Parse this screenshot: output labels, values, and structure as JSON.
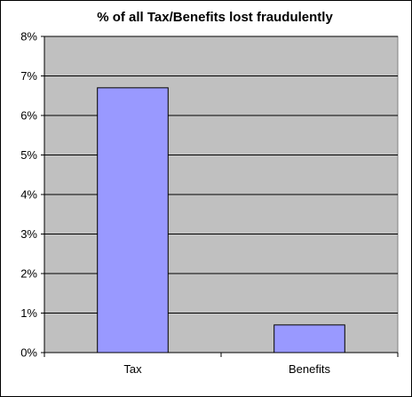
{
  "chart_data": {
    "type": "bar",
    "title": "% of all Tax/Benefits lost fraudulently",
    "categories": [
      "Tax",
      "Benefits"
    ],
    "values": [
      6.7,
      0.7
    ],
    "ylim": [
      0,
      8
    ],
    "yticks": [
      "0%",
      "1%",
      "2%",
      "3%",
      "4%",
      "5%",
      "6%",
      "7%",
      "8%"
    ],
    "grid": true,
    "legend": "none",
    "colors": {
      "plot_background": "#C0C0C0",
      "bar_fill": "#9999FF",
      "bar_stroke": "#000000",
      "gridline": "#000000"
    }
  }
}
